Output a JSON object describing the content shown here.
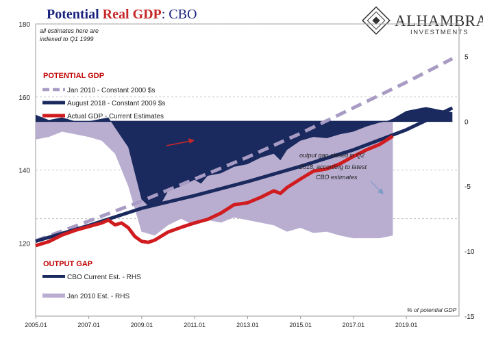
{
  "title": {
    "part1": "Potential ",
    "part2": "Real GDP",
    "part3": ":  CBO",
    "color_main": "#1a237e",
    "color_accent": "#c62828"
  },
  "logo": {
    "name": "ALHAMBRA",
    "sub": "INVESTMENTS"
  },
  "note": {
    "line1": "all estimates here are",
    "line2": "indexed to Q1 1999"
  },
  "legend_top": {
    "heading": "POTENTIAL GDP",
    "items": [
      "Jan 2010 - Constant 2000 $s",
      "August 2018 - Constant 2009 $s",
      "Actual GDP - Current Estimates"
    ]
  },
  "legend_bottom": {
    "heading": "OUTPUT GAP",
    "items": [
      "CBO Current Est. - RHS",
      "Jan 2010 Est. - RHS"
    ]
  },
  "annotation": {
    "line1": "output gap closed in Q2",
    "line2": "2018, according to latest",
    "line3": "CBO estimates"
  },
  "rhs_unit_label": "% of potential GDP",
  "colors": {
    "jan2010_dashed": "#a99cc4",
    "aug2018_line": "#1a2a5e",
    "actual_gdp": "#d01c1f",
    "gap_current": "#1a2a5e",
    "gap_jan2010": "#b9aed0",
    "heading_red": "#c00000",
    "grid": "#b0b0b0"
  },
  "chart_data": {
    "type": "line+area",
    "x_tick_labels": [
      "2005.01",
      "2007.01",
      "2009.01",
      "2011.01",
      "2013.01",
      "2015.01",
      "2017.01",
      "2019.01"
    ],
    "x_range": [
      2005.0,
      2021.0
    ],
    "y_left": {
      "ticks": [
        "120",
        "140",
        "160",
        "180"
      ],
      "range": [
        100,
        180
      ]
    },
    "y_right": {
      "ticks": [
        "5",
        "0",
        "-5",
        "-10",
        "-15"
      ],
      "range": [
        -15,
        7.5
      ]
    },
    "series": [
      {
        "name": "Jan 2010 - Constant 2000 $s",
        "axis": "left",
        "style": "dashed",
        "points": [
          [
            2005.0,
            120.6
          ],
          [
            2007.0,
            126.0
          ],
          [
            2009.0,
            131.5
          ],
          [
            2011.0,
            137.5
          ],
          [
            2013.0,
            143.5
          ],
          [
            2015.0,
            150.0
          ],
          [
            2017.0,
            157.0
          ],
          [
            2019.0,
            164.0
          ],
          [
            2020.75,
            170.5
          ]
        ]
      },
      {
        "name": "August 2018 - Constant 2009 $s",
        "axis": "left",
        "style": "solid",
        "points": [
          [
            2005.0,
            120.5
          ],
          [
            2007.0,
            124.8
          ],
          [
            2009.0,
            129.5
          ],
          [
            2011.0,
            133.0
          ],
          [
            2013.0,
            136.8
          ],
          [
            2015.0,
            141.0
          ],
          [
            2017.0,
            145.5
          ],
          [
            2019.0,
            151.0
          ],
          [
            2020.75,
            157.0
          ]
        ]
      },
      {
        "name": "Actual GDP - Current Estimates",
        "axis": "left",
        "style": "solid",
        "points": [
          [
            2005.0,
            119.3
          ],
          [
            2005.5,
            120.4
          ],
          [
            2006.0,
            122.2
          ],
          [
            2006.5,
            123.5
          ],
          [
            2007.0,
            124.5
          ],
          [
            2007.5,
            125.5
          ],
          [
            2007.75,
            126.3
          ],
          [
            2008.0,
            125.0
          ],
          [
            2008.25,
            125.5
          ],
          [
            2008.5,
            124.2
          ],
          [
            2008.75,
            121.8
          ],
          [
            2009.0,
            120.5
          ],
          [
            2009.25,
            120.2
          ],
          [
            2009.5,
            120.8
          ],
          [
            2010.0,
            123.0
          ],
          [
            2010.5,
            124.3
          ],
          [
            2011.0,
            125.5
          ],
          [
            2011.5,
            126.5
          ],
          [
            2012.0,
            128.2
          ],
          [
            2012.5,
            130.5
          ],
          [
            2013.0,
            131.0
          ],
          [
            2013.5,
            132.5
          ],
          [
            2014.0,
            134.3
          ],
          [
            2014.25,
            133.6
          ],
          [
            2014.5,
            135.2
          ],
          [
            2015.0,
            137.5
          ],
          [
            2015.5,
            139.7
          ],
          [
            2016.0,
            140.3
          ],
          [
            2016.5,
            141.7
          ],
          [
            2017.0,
            143.7
          ],
          [
            2017.5,
            145.5
          ],
          [
            2018.0,
            147.0
          ],
          [
            2018.5,
            149.3
          ]
        ]
      },
      {
        "name": "CBO Current Est. - RHS",
        "axis": "right",
        "style": "area",
        "points": [
          [
            2005.0,
            0.5
          ],
          [
            2005.5,
            0.1
          ],
          [
            2006.0,
            0.3
          ],
          [
            2006.5,
            0.0
          ],
          [
            2007.0,
            0.0
          ],
          [
            2007.5,
            0.2
          ],
          [
            2007.75,
            0.3
          ],
          [
            2008.0,
            -0.5
          ],
          [
            2008.5,
            -2.0
          ],
          [
            2009.0,
            -6.0
          ],
          [
            2009.25,
            -6.5
          ],
          [
            2009.75,
            -6.3
          ],
          [
            2010.0,
            -5.4
          ],
          [
            2010.5,
            -5.0
          ],
          [
            2011.0,
            -4.5
          ],
          [
            2011.25,
            -4.8
          ],
          [
            2011.5,
            -4.2
          ],
          [
            2012.0,
            -4.0
          ],
          [
            2012.5,
            -3.5
          ],
          [
            2013.0,
            -3.3
          ],
          [
            2013.5,
            -2.8
          ],
          [
            2014.0,
            -2.5
          ],
          [
            2014.25,
            -3.0
          ],
          [
            2014.5,
            -2.2
          ],
          [
            2015.0,
            -1.5
          ],
          [
            2015.5,
            -1.2
          ],
          [
            2016.0,
            -1.3
          ],
          [
            2016.5,
            -1.0
          ],
          [
            2017.0,
            -0.8
          ],
          [
            2017.5,
            -0.4
          ],
          [
            2018.0,
            -0.1
          ],
          [
            2018.25,
            0.0
          ],
          [
            2018.5,
            0.2
          ],
          [
            2019.0,
            0.8
          ],
          [
            2019.5,
            1.0
          ],
          [
            2019.75,
            1.1
          ],
          [
            2020.0,
            1.0
          ],
          [
            2020.5,
            0.8
          ],
          [
            2020.75,
            0.7
          ]
        ]
      },
      {
        "name": "Jan 2010 Est. - RHS",
        "axis": "right",
        "style": "area",
        "points": [
          [
            2005.0,
            -1.4
          ],
          [
            2005.5,
            -1.2
          ],
          [
            2006.0,
            -0.8
          ],
          [
            2006.5,
            -1.0
          ],
          [
            2007.0,
            -1.2
          ],
          [
            2007.5,
            -1.5
          ],
          [
            2008.0,
            -2.5
          ],
          [
            2008.5,
            -5.0
          ],
          [
            2009.0,
            -8.5
          ],
          [
            2009.5,
            -8.8
          ],
          [
            2010.0,
            -8.0
          ],
          [
            2010.5,
            -7.5
          ],
          [
            2011.0,
            -8.0
          ],
          [
            2011.5,
            -7.6
          ],
          [
            2012.0,
            -7.8
          ],
          [
            2012.5,
            -7.4
          ],
          [
            2013.0,
            -7.6
          ],
          [
            2013.5,
            -7.8
          ],
          [
            2014.0,
            -8.0
          ],
          [
            2014.5,
            -8.5
          ],
          [
            2015.0,
            -8.2
          ],
          [
            2015.5,
            -8.6
          ],
          [
            2016.0,
            -8.5
          ],
          [
            2016.5,
            -8.8
          ],
          [
            2017.0,
            -9.0
          ],
          [
            2017.5,
            -9.0
          ],
          [
            2018.0,
            -9.0
          ],
          [
            2018.5,
            -8.8
          ]
        ]
      }
    ]
  }
}
